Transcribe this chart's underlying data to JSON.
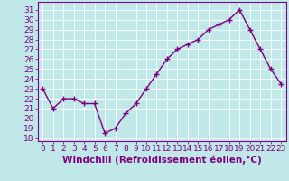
{
  "x": [
    0,
    1,
    2,
    3,
    4,
    5,
    6,
    7,
    8,
    9,
    10,
    11,
    12,
    13,
    14,
    15,
    16,
    17,
    18,
    19,
    20,
    21,
    22,
    23
  ],
  "y": [
    23,
    21,
    22,
    22,
    21.5,
    21.5,
    18.5,
    19,
    20.5,
    21.5,
    23,
    24.5,
    26,
    27,
    27.5,
    28,
    29,
    29.5,
    30,
    31,
    29,
    27,
    25,
    23.5
  ],
  "line_color": "#800080",
  "marker": "+",
  "bg_color": "#c0e8e8",
  "grid_color": "#b0d8d8",
  "xlabel": "Windchill (Refroidissement éolien,°C)",
  "ylabel_ticks": [
    18,
    19,
    20,
    21,
    22,
    23,
    24,
    25,
    26,
    27,
    28,
    29,
    30,
    31
  ],
  "ylim": [
    17.7,
    31.8
  ],
  "xlim": [
    -0.5,
    23.5
  ],
  "tick_fontsize": 6.5,
  "xlabel_fontsize": 7.5,
  "line_width": 1.0,
  "marker_size": 4.5
}
